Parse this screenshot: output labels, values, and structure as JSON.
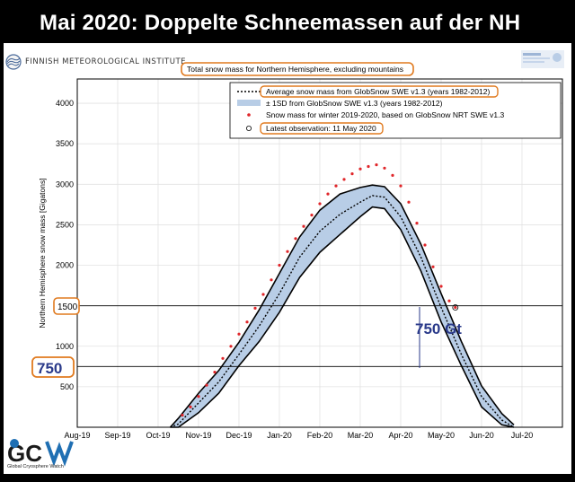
{
  "banner": {
    "title": "Mai 2020: Doppelte Schneemassen auf der NH"
  },
  "logos": {
    "fmi": "FINNISH METEOROLOGICAL INSTITUTE",
    "gcw_caption": "Global Cryosphere Watch"
  },
  "chart_data": {
    "type": "line",
    "title": "Total snow mass for Northern Hemisphere, excluding mountains",
    "ylabel": "Northern Hemisphere snow mass [Gigatons]",
    "xlabel": "",
    "xlim": [
      0,
      12
    ],
    "ylim": [
      0,
      4300
    ],
    "yticks": [
      0,
      500,
      1000,
      1500,
      2000,
      2500,
      3000,
      3500,
      4000
    ],
    "ytick_labels": [
      "",
      "500",
      "1000",
      "1500",
      "2000",
      "2500",
      "3000",
      "3500",
      "4000"
    ],
    "xticks": [
      "Aug-19",
      "Sep-19",
      "Oct-19",
      "Nov-19",
      "Dec-19",
      "Jan-20",
      "Feb-20",
      "Mar-20",
      "Apr-20",
      "May-20",
      "Jun-20",
      "Jul-20"
    ],
    "grid": true,
    "legend_position": "top-right",
    "legend": {
      "mean": "Average snow mass from GlobSnow SWE v1.3 (years 1982-2012)",
      "band": "± 1SD from GlobSnow SWE v1.3 (years 1982-2012)",
      "obs": "Snow mass for winter 2019-2020, based on GlobSnow NRT SWE v1.3",
      "latest": "Latest observation: 11 May 2020"
    },
    "reference_lines": [
      {
        "value": 1500,
        "label": "1500"
      },
      {
        "value": 750,
        "label": "750"
      }
    ],
    "annotations": {
      "gap": "750 Gt"
    },
    "series": [
      {
        "name": "Average snow mass from GlobSnow SWE v1.3 (years 1982-2012)",
        "x": [
          2.3,
          2.5,
          3.0,
          3.5,
          4.0,
          4.5,
          5.0,
          5.5,
          6.0,
          6.5,
          7.0,
          7.3,
          7.6,
          8.0,
          8.5,
          9.0,
          9.5,
          10.0,
          10.5,
          10.8
        ],
        "values": [
          0,
          40,
          300,
          560,
          900,
          1250,
          1650,
          2100,
          2420,
          2630,
          2780,
          2860,
          2840,
          2600,
          2100,
          1480,
          900,
          380,
          90,
          0
        ]
      },
      {
        "name": "± 1SD from GlobSnow SWE v1.3 (years 1982-2012)",
        "x": [
          2.3,
          2.5,
          3.0,
          3.5,
          4.0,
          4.5,
          5.0,
          5.5,
          6.0,
          6.5,
          7.0,
          7.3,
          7.6,
          8.0,
          8.5,
          9.0,
          9.5,
          10.0,
          10.5,
          10.8
        ],
        "upper": [
          0,
          110,
          420,
          700,
          1050,
          1450,
          1900,
          2350,
          2680,
          2880,
          2960,
          2990,
          2970,
          2760,
          2260,
          1650,
          1060,
          510,
          170,
          30
        ],
        "lower": [
          0,
          0,
          180,
          420,
          760,
          1060,
          1420,
          1850,
          2160,
          2380,
          2600,
          2720,
          2700,
          2440,
          1930,
          1300,
          760,
          250,
          30,
          0
        ]
      },
      {
        "name": "Snow mass for winter 2019-2020, based on GlobSnow NRT SWE v1.3",
        "x": [
          2.6,
          2.8,
          3.0,
          3.2,
          3.4,
          3.6,
          3.8,
          4.0,
          4.2,
          4.4,
          4.6,
          4.8,
          5.0,
          5.2,
          5.4,
          5.6,
          5.8,
          6.0,
          6.2,
          6.4,
          6.6,
          6.8,
          7.0,
          7.2,
          7.4,
          7.6,
          7.8,
          8.0,
          8.2,
          8.4,
          8.6,
          8.8,
          9.0,
          9.2,
          9.35
        ],
        "values": [
          150,
          250,
          380,
          520,
          680,
          850,
          1000,
          1150,
          1300,
          1470,
          1640,
          1820,
          2000,
          2170,
          2330,
          2480,
          2620,
          2760,
          2880,
          2980,
          3060,
          3130,
          3190,
          3220,
          3240,
          3200,
          3110,
          2980,
          2780,
          2520,
          2250,
          1980,
          1740,
          1560,
          1480
        ]
      }
    ]
  }
}
